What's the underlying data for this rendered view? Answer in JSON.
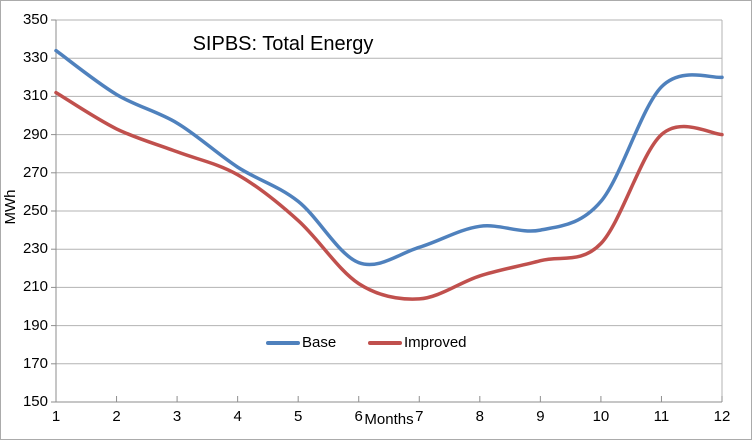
{
  "chart_data": {
    "type": "line",
    "title": "SIPBS: Total Energy",
    "xlabel": "Months",
    "ylabel": "MWh",
    "x": [
      1,
      2,
      3,
      4,
      5,
      6,
      7,
      8,
      9,
      10,
      11,
      12
    ],
    "xtick_labels": [
      "1",
      "2",
      "3",
      "4",
      "5",
      "6",
      "7",
      "8",
      "9",
      "10",
      "11",
      "12"
    ],
    "ytick_labels": [
      "350",
      "330",
      "310",
      "290",
      "270",
      "250",
      "230",
      "210",
      "190",
      "170",
      "150"
    ],
    "yticks": [
      350,
      330,
      310,
      290,
      270,
      250,
      230,
      210,
      190,
      170,
      150
    ],
    "xlim": [
      1,
      12
    ],
    "ylim": [
      150,
      350
    ],
    "grid": "horizontal",
    "smooth": true,
    "legend_position": "bottom-center",
    "series": [
      {
        "name": "Base",
        "color": "#4F81BD",
        "values": [
          334,
          311,
          296,
          273,
          255,
          223,
          231,
          242,
          240,
          255,
          315,
          320
        ]
      },
      {
        "name": "Improved",
        "color": "#C0504D",
        "values": [
          312,
          293,
          281,
          269,
          245,
          212,
          204,
          216,
          224,
          233,
          290,
          290
        ]
      }
    ],
    "colors": {
      "gridline": "#b3b3b3",
      "axis": "#8e8e8e",
      "text": "#000000",
      "background": "#ffffff"
    }
  }
}
